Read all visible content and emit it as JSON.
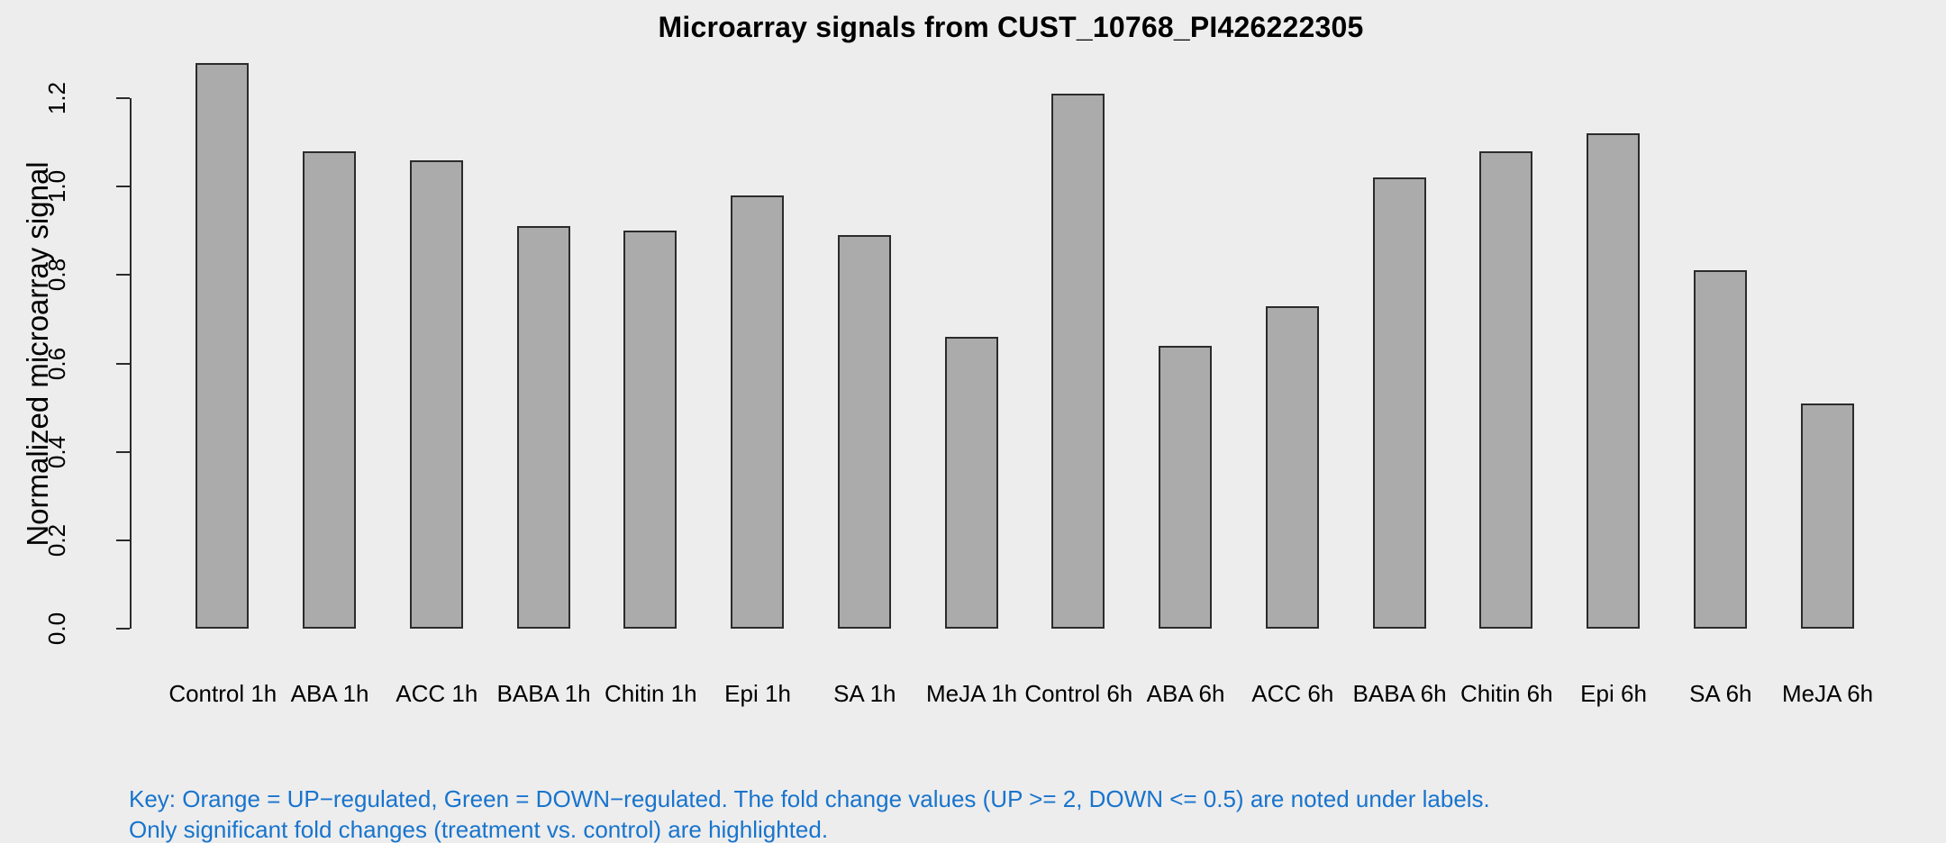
{
  "chart_data": {
    "type": "bar",
    "title": "Microarray signals from CUST_10768_PI426222305",
    "xlabel": "",
    "ylabel": "Normalized microarray signal",
    "categories": [
      "Control 1h",
      "ABA 1h",
      "ACC 1h",
      "BABA 1h",
      "Chitin 1h",
      "Epi 1h",
      "SA 1h",
      "MeJA 1h",
      "Control 6h",
      "ABA 6h",
      "ACC 6h",
      "BABA 6h",
      "Chitin 6h",
      "Epi 6h",
      "SA 6h",
      "MeJA 6h"
    ],
    "values": [
      1.28,
      1.08,
      1.06,
      0.91,
      0.9,
      0.98,
      0.89,
      0.66,
      1.21,
      0.64,
      0.73,
      1.02,
      1.08,
      1.12,
      0.81,
      0.51
    ],
    "yticks": [
      0.0,
      0.2,
      0.4,
      0.6,
      0.8,
      1.0,
      1.2
    ],
    "ytick_labels": [
      "0.0",
      "0.2",
      "0.4",
      "0.6",
      "0.8",
      "1.0",
      "1.2"
    ],
    "ylim": [
      0,
      1.2
    ],
    "grid": false,
    "legend": "none",
    "bar_fill": "#ababab",
    "bar_border": "#2b2b2b"
  },
  "annotations": {
    "key_line1": "Key: Orange = UP−regulated, Green = DOWN−regulated. The fold change values (UP >= 2, DOWN <= 0.5) are noted under labels.",
    "key_line2": "Only significant fold changes (treatment vs. control) are highlighted.",
    "key_color": "#1874cd"
  },
  "colors": {
    "background": "#ededed",
    "axis": "#2b2b2b",
    "text": "#000000"
  }
}
